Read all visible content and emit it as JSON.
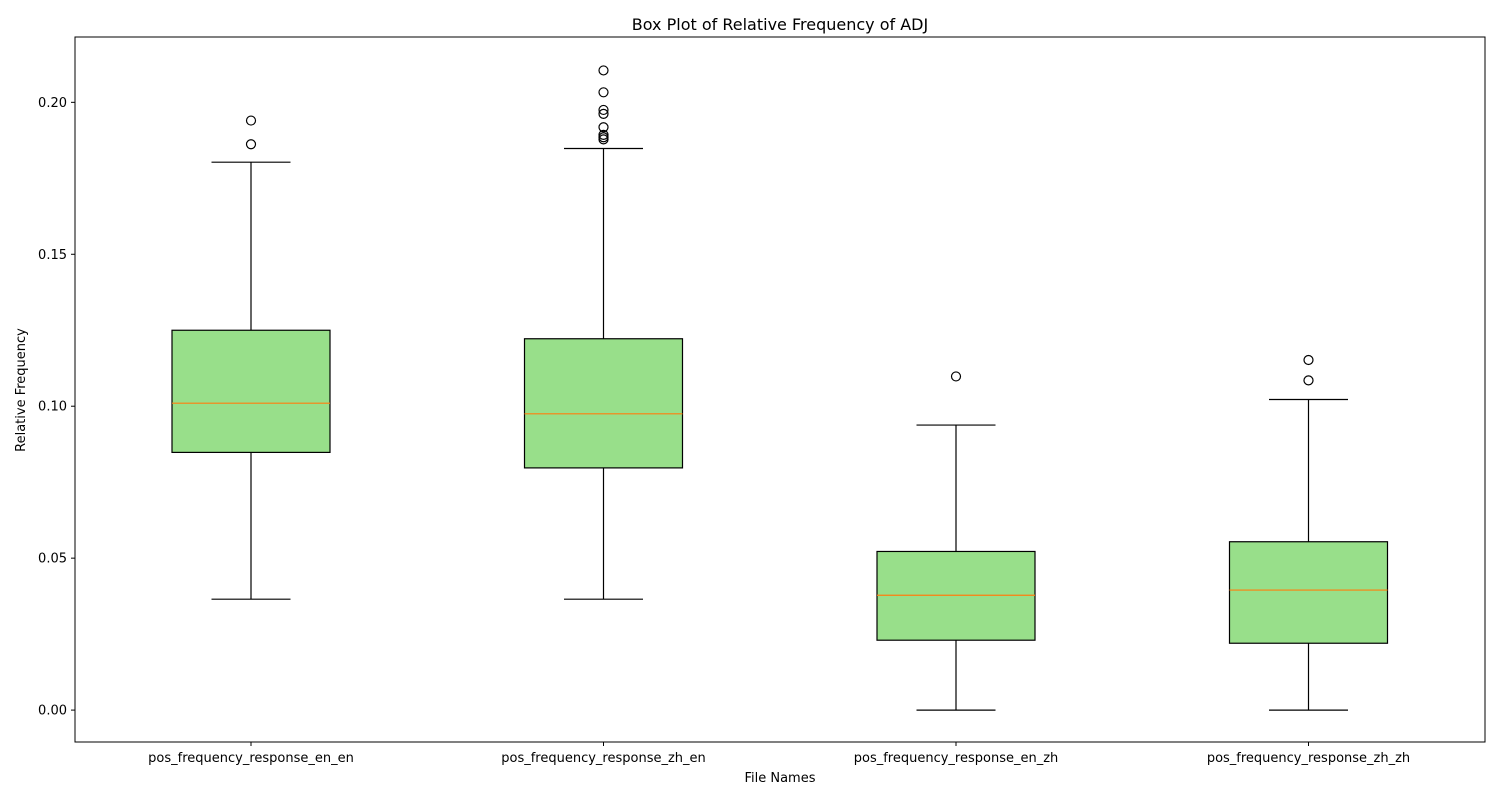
{
  "chart_data": {
    "type": "box",
    "title": "Box Plot of Relative Frequency of ADJ",
    "xlabel": "File Names",
    "ylabel": "Relative Frequency",
    "ylim": [
      -0.0105,
      0.2215
    ],
    "yticks": [
      0.0,
      0.05,
      0.1,
      0.15,
      0.2
    ],
    "ytick_labels": [
      "0.00",
      "0.05",
      "0.10",
      "0.15",
      "0.20"
    ],
    "grid": false,
    "box_color": "#98df8a",
    "median_color": "#ff7f0e",
    "categories": [
      "pos_frequency_response_en_en",
      "pos_frequency_response_zh_en",
      "pos_frequency_response_en_zh",
      "pos_frequency_response_zh_zh"
    ],
    "boxes": [
      {
        "whisker_low": 0.0365,
        "q1": 0.0848,
        "median": 0.101,
        "q3": 0.125,
        "whisker_high": 0.1803,
        "outliers": [
          0.1862,
          0.194
        ]
      },
      {
        "whisker_low": 0.0365,
        "q1": 0.0797,
        "median": 0.0975,
        "q3": 0.1222,
        "whisker_high": 0.1848,
        "outliers": [
          0.1878,
          0.1885,
          0.1893,
          0.1918,
          0.1962,
          0.1975,
          0.2033,
          0.2105
        ]
      },
      {
        "whisker_low": 0.0,
        "q1": 0.023,
        "median": 0.0378,
        "q3": 0.0522,
        "whisker_high": 0.0938,
        "outliers": [
          0.1098
        ]
      },
      {
        "whisker_low": 0.0,
        "q1": 0.022,
        "median": 0.0395,
        "q3": 0.0554,
        "whisker_high": 0.1022,
        "outliers": [
          0.1085,
          0.1152
        ]
      }
    ]
  }
}
